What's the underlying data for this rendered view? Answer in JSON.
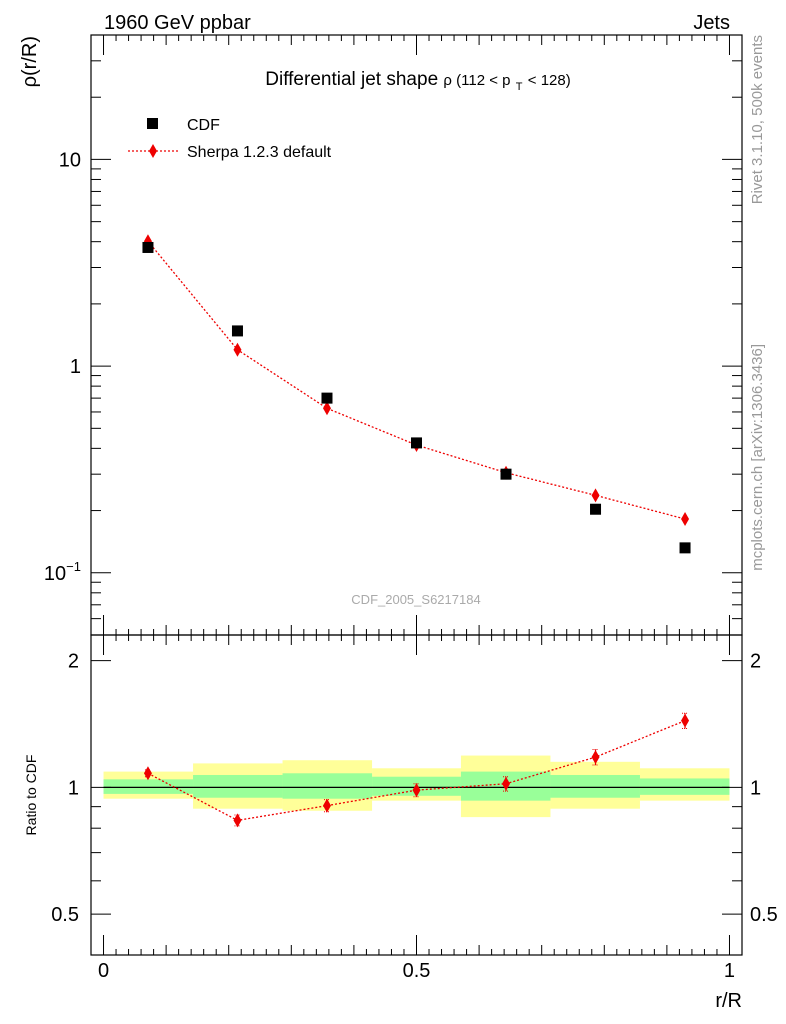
{
  "header": {
    "left": "1960 GeV ppbar",
    "right": "Jets"
  },
  "title": {
    "main": "Differential jet shape",
    "sub": "ρ (112 < p",
    "sub_index": "T",
    "sub_tail": " < 128)"
  },
  "side_labels": {
    "rivet": "Rivet 3.1.10,  500k events",
    "mcplots": "mcplots.cern.ch [arXiv:1306.3436]"
  },
  "analysis_id": "CDF_2005_S6217184",
  "legend": {
    "data_label": "CDF",
    "mc_label": "Sherpa 1.2.3 default"
  },
  "colors": {
    "data": "#000000",
    "mc": "#ee0000",
    "band_outer": "#ffff99",
    "band_inner": "#99ff99"
  },
  "chart_data": [
    {
      "type": "scatter",
      "panel": "main",
      "ylabel": "ρ(r/R)",
      "yscale": "log",
      "ylim": [
        0.05,
        40
      ],
      "xlim": [
        -0.02,
        1.02
      ],
      "y_ticks": [
        {
          "value": 0.1,
          "base": "10",
          "exp": "−1"
        },
        {
          "value": 1,
          "label": "1"
        },
        {
          "value": 10,
          "label": "10"
        }
      ],
      "series": [
        {
          "name": "CDF",
          "style": "square-markers",
          "x": [
            0.071,
            0.214,
            0.357,
            0.5,
            0.643,
            0.786,
            0.929
          ],
          "y": [
            3.75,
            1.48,
            0.7,
            0.425,
            0.3,
            0.203,
            0.132
          ]
        },
        {
          "name": "Sherpa 1.2.3 default",
          "style": "dotted-line-diamonds",
          "x": [
            0.071,
            0.214,
            0.357,
            0.5,
            0.643,
            0.786,
            0.929
          ],
          "y": [
            4.02,
            1.2,
            0.625,
            0.415,
            0.305,
            0.237,
            0.182
          ],
          "err": [
            0.06,
            0.04,
            0.025,
            0.02,
            0.015,
            0.014,
            0.013
          ]
        }
      ]
    },
    {
      "type": "scatter",
      "panel": "ratio",
      "xlabel": "r/R",
      "ylabel": "Ratio to CDF",
      "ylim": [
        0.4,
        2.3
      ],
      "x_ticks": [
        {
          "value": 0,
          "label": "0"
        },
        {
          "value": 0.5,
          "label": "0.5"
        },
        {
          "value": 1,
          "label": "1"
        }
      ],
      "y_ticks": [
        {
          "value": 0.5,
          "label": "0.5"
        },
        {
          "value": 1,
          "label": "1"
        },
        {
          "value": 2,
          "label": "2"
        }
      ],
      "bins": [
        [
          0,
          0.143
        ],
        [
          0.143,
          0.286
        ],
        [
          0.286,
          0.429
        ],
        [
          0.429,
          0.571
        ],
        [
          0.571,
          0.714
        ],
        [
          0.714,
          0.857
        ],
        [
          0.857,
          1.0
        ]
      ],
      "band_outer": [
        [
          0.94,
          1.09
        ],
        [
          0.89,
          1.14
        ],
        [
          0.88,
          1.16
        ],
        [
          0.93,
          1.11
        ],
        [
          0.85,
          1.19
        ],
        [
          0.89,
          1.15
        ],
        [
          0.93,
          1.11
        ]
      ],
      "band_inner": [
        [
          0.965,
          1.045
        ],
        [
          0.945,
          1.07
        ],
        [
          0.94,
          1.08
        ],
        [
          0.955,
          1.06
        ],
        [
          0.93,
          1.09
        ],
        [
          0.945,
          1.07
        ],
        [
          0.96,
          1.05
        ]
      ],
      "series": [
        {
          "name": "Sherpa 1.2.3 default",
          "x": [
            0.071,
            0.214,
            0.357,
            0.5,
            0.643,
            0.786,
            0.929
          ],
          "y": [
            1.08,
            0.835,
            0.905,
            0.985,
            1.02,
            1.18,
            1.44
          ],
          "err": [
            0.02,
            0.025,
            0.03,
            0.035,
            0.04,
            0.05,
            0.06
          ]
        }
      ]
    }
  ]
}
